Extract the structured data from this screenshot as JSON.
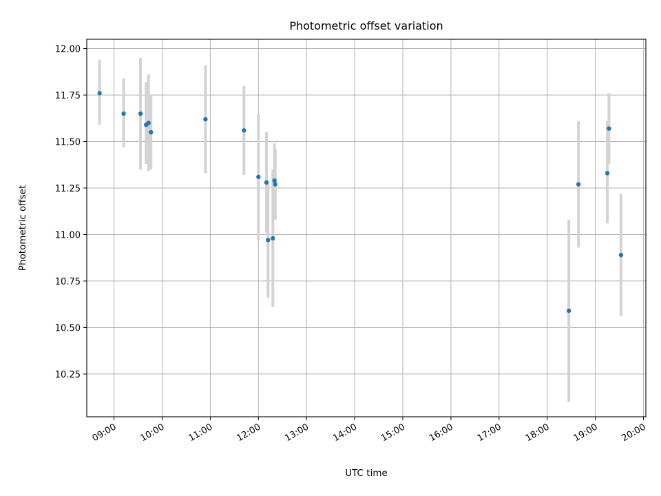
{
  "chart_data": {
    "type": "scatter",
    "title": "Photometric offset variation",
    "xlabel": "UTC time",
    "ylabel": "Photometric offset",
    "xlim": [
      "08:26",
      "20:03"
    ],
    "ylim": [
      10.02,
      12.05
    ],
    "x_ticks": [
      "09:00",
      "10:00",
      "11:00",
      "12:00",
      "13:00",
      "14:00",
      "15:00",
      "16:00",
      "17:00",
      "18:00",
      "19:00",
      "20:00"
    ],
    "y_ticks": [
      10.25,
      10.5,
      10.75,
      11.0,
      11.25,
      11.5,
      11.75,
      12.0
    ],
    "y_tick_labels": [
      "10.25",
      "10.50",
      "10.75",
      "11.00",
      "11.25",
      "11.50",
      "11.75",
      "12.00"
    ],
    "grid": true,
    "marker_color": "#1f77b4",
    "errorbar_color": "#d3d3d3",
    "points": [
      {
        "t": "08:42",
        "y": 11.76,
        "lo": 11.59,
        "hi": 11.94
      },
      {
        "t": "09:12",
        "y": 11.65,
        "lo": 11.47,
        "hi": 11.84
      },
      {
        "t": "09:33",
        "y": 11.65,
        "lo": 11.35,
        "hi": 11.95
      },
      {
        "t": "09:40",
        "y": 11.59,
        "lo": 11.38,
        "hi": 11.82
      },
      {
        "t": "09:43",
        "y": 11.6,
        "lo": 11.34,
        "hi": 11.86
      },
      {
        "t": "09:46",
        "y": 11.55,
        "lo": 11.35,
        "hi": 11.75
      },
      {
        "t": "10:54",
        "y": 11.62,
        "lo": 11.33,
        "hi": 11.91
      },
      {
        "t": "11:42",
        "y": 11.56,
        "lo": 11.32,
        "hi": 11.8
      },
      {
        "t": "12:00",
        "y": 11.31,
        "lo": 10.97,
        "hi": 11.65
      },
      {
        "t": "12:10",
        "y": 11.28,
        "lo": 11.01,
        "hi": 11.55
      },
      {
        "t": "12:12",
        "y": 10.97,
        "lo": 10.66,
        "hi": 11.28
      },
      {
        "t": "12:18",
        "y": 10.98,
        "lo": 10.61,
        "hi": 11.35
      },
      {
        "t": "12:20",
        "y": 11.29,
        "lo": 11.09,
        "hi": 11.49
      },
      {
        "t": "12:21",
        "y": 11.27,
        "lo": 11.08,
        "hi": 11.46
      },
      {
        "t": "18:27",
        "y": 10.59,
        "lo": 10.1,
        "hi": 11.08
      },
      {
        "t": "18:39",
        "y": 11.27,
        "lo": 10.93,
        "hi": 11.61
      },
      {
        "t": "19:15",
        "y": 11.33,
        "lo": 11.06,
        "hi": 11.61
      },
      {
        "t": "19:17",
        "y": 11.57,
        "lo": 11.38,
        "hi": 11.76
      },
      {
        "t": "19:32",
        "y": 10.89,
        "lo": 10.56,
        "hi": 11.22
      }
    ]
  }
}
